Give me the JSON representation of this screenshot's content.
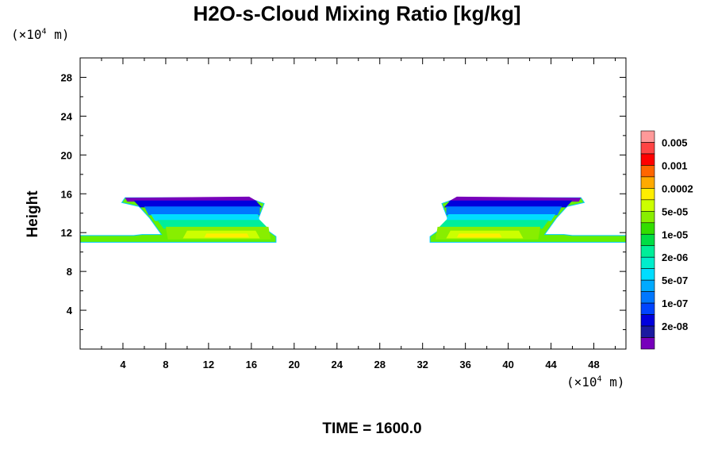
{
  "chart_data": {
    "type": "contour",
    "title": "H2O-s-Cloud Mixing Ratio [kg/kg]",
    "ylabel": "Height",
    "xlabel": "",
    "x_unit": "(×10⁴ m)",
    "y_unit": "(×10⁴ m)",
    "x_unit_parts": {
      "prefix": "(×10",
      "exp": "4",
      "suffix": " m)"
    },
    "y_unit_parts": {
      "prefix": "(×10",
      "exp": "4",
      "suffix": " m)"
    },
    "xlim": [
      0,
      51
    ],
    "ylim": [
      0,
      30
    ],
    "xticks": [
      4,
      8,
      12,
      16,
      20,
      24,
      28,
      32,
      36,
      40,
      44,
      48
    ],
    "yticks": [
      4,
      8,
      12,
      16,
      20,
      24,
      28
    ],
    "grid": false,
    "legend": "right",
    "footer": "TIME = 1600.0",
    "colorbar": {
      "labels": [
        "0.005",
        "0.001",
        "0.0002",
        "5e-05",
        "1e-05",
        "2e-06",
        "5e-07",
        "1e-07",
        "2e-08"
      ],
      "colors": [
        "#ff9999",
        "#ff4444",
        "#ff0000",
        "#ff6600",
        "#ffaa00",
        "#ffee00",
        "#ccff00",
        "#88ee00",
        "#33dd00",
        "#00dd44",
        "#00ee99",
        "#00eecc",
        "#00ddff",
        "#00aaff",
        "#0077ff",
        "#0044ff",
        "#0000dd",
        "#1a1aa0",
        "#7700bb"
      ]
    },
    "regions": [
      {
        "name": "left anvil",
        "outline": [
          [
            0,
            11.0
          ],
          [
            18.3,
            11.0
          ],
          [
            18.3,
            11.6
          ],
          [
            16.5,
            13.0
          ],
          [
            17.2,
            15.0
          ],
          [
            15.6,
            15.6
          ],
          [
            4.2,
            15.6
          ],
          [
            3.9,
            15.1
          ],
          [
            5.5,
            14.7
          ],
          [
            6.5,
            13.5
          ],
          [
            7.6,
            11.8
          ],
          [
            5.8,
            11.8
          ],
          [
            5.0,
            11.7
          ],
          [
            0,
            11.7
          ]
        ],
        "layers": [
          {
            "color": "#7700bb",
            "outline": [
              [
                4.2,
                15.6
              ],
              [
                15.8,
                15.7
              ],
              [
                16.6,
                15.2
              ],
              [
                4.4,
                15.2
              ]
            ]
          },
          {
            "color": "#0000dd",
            "outline": [
              [
                5.0,
                15.3
              ],
              [
                16.4,
                15.3
              ],
              [
                17.0,
                14.6
              ],
              [
                5.6,
                14.6
              ]
            ]
          },
          {
            "color": "#0077ff",
            "outline": [
              [
                6.0,
                14.7
              ],
              [
                16.8,
                14.7
              ],
              [
                16.8,
                13.8
              ],
              [
                6.4,
                13.8
              ]
            ]
          },
          {
            "color": "#00ddff",
            "outline": [
              [
                6.6,
                13.9
              ],
              [
                16.6,
                13.9
              ],
              [
                16.8,
                13.2
              ],
              [
                7.0,
                13.2
              ]
            ]
          },
          {
            "color": "#00ee99",
            "outline": [
              [
                7.2,
                13.3
              ],
              [
                16.8,
                13.3
              ],
              [
                17.6,
                12.4
              ],
              [
                7.8,
                12.4
              ]
            ]
          },
          {
            "color": "#88ee00",
            "outline": [
              [
                8.0,
                12.6
              ],
              [
                17.6,
                12.6
              ],
              [
                17.8,
                11.3
              ],
              [
                8.2,
                11.3
              ]
            ]
          },
          {
            "color": "#ccff00",
            "outline": [
              [
                10.0,
                12.2
              ],
              [
                16.4,
                12.2
              ],
              [
                16.8,
                11.4
              ],
              [
                9.6,
                11.4
              ]
            ]
          },
          {
            "color": "#ffee00",
            "outline": [
              [
                11.8,
                11.9
              ],
              [
                15.6,
                11.9
              ],
              [
                15.8,
                11.5
              ],
              [
                11.6,
                11.5
              ]
            ]
          }
        ]
      },
      {
        "name": "right anvil",
        "outline": [
          [
            32.7,
            11.0
          ],
          [
            51,
            11.0
          ],
          [
            51,
            11.7
          ],
          [
            46.0,
            11.7
          ],
          [
            45.2,
            11.8
          ],
          [
            43.4,
            11.8
          ],
          [
            44.5,
            13.5
          ],
          [
            45.5,
            14.7
          ],
          [
            47.1,
            15.1
          ],
          [
            46.8,
            15.6
          ],
          [
            35.4,
            15.6
          ],
          [
            33.8,
            15.0
          ],
          [
            34.5,
            13.0
          ],
          [
            32.7,
            11.6
          ]
        ],
        "layers": [
          {
            "color": "#7700bb",
            "outline": [
              [
                35.2,
                15.7
              ],
              [
                46.8,
                15.6
              ],
              [
                46.6,
                15.2
              ],
              [
                34.4,
                15.2
              ]
            ]
          },
          {
            "color": "#0000dd",
            "outline": [
              [
                34.6,
                15.3
              ],
              [
                46.0,
                15.3
              ],
              [
                45.4,
                14.6
              ],
              [
                34.0,
                14.6
              ]
            ]
          },
          {
            "color": "#0077ff",
            "outline": [
              [
                34.2,
                14.7
              ],
              [
                45.0,
                14.7
              ],
              [
                44.6,
                13.8
              ],
              [
                34.2,
                13.8
              ]
            ]
          },
          {
            "color": "#00ddff",
            "outline": [
              [
                34.4,
                13.9
              ],
              [
                44.4,
                13.9
              ],
              [
                44.0,
                13.2
              ],
              [
                34.2,
                13.2
              ]
            ]
          },
          {
            "color": "#00ee99",
            "outline": [
              [
                34.2,
                13.3
              ],
              [
                43.8,
                13.3
              ],
              [
                43.2,
                12.4
              ],
              [
                33.4,
                12.4
              ]
            ]
          },
          {
            "color": "#88ee00",
            "outline": [
              [
                33.4,
                12.6
              ],
              [
                43.0,
                12.6
              ],
              [
                42.8,
                11.3
              ],
              [
                33.2,
                11.3
              ]
            ]
          },
          {
            "color": "#ccff00",
            "outline": [
              [
                34.6,
                12.2
              ],
              [
                41.0,
                12.2
              ],
              [
                41.4,
                11.4
              ],
              [
                34.2,
                11.4
              ]
            ]
          },
          {
            "color": "#ffee00",
            "outline": [
              [
                35.4,
                11.9
              ],
              [
                39.2,
                11.9
              ],
              [
                39.4,
                11.5
              ],
              [
                35.2,
                11.5
              ]
            ]
          }
        ]
      }
    ]
  }
}
